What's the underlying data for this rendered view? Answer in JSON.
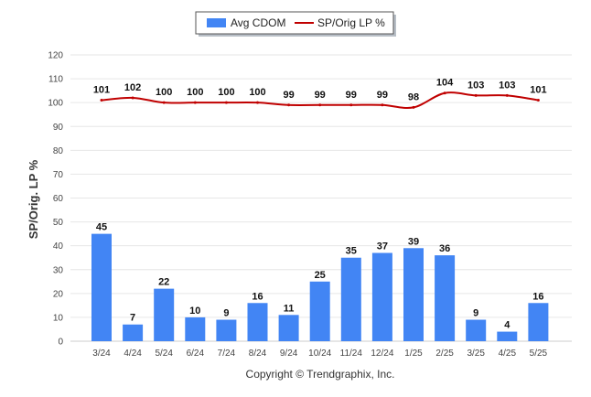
{
  "chart_data": {
    "type": "bar",
    "categories": [
      "3/24",
      "4/24",
      "5/24",
      "6/24",
      "7/24",
      "8/24",
      "9/24",
      "10/24",
      "11/24",
      "12/24",
      "1/25",
      "2/25",
      "3/25",
      "4/25",
      "5/25"
    ],
    "series": [
      {
        "name": "Avg CDOM",
        "type": "bar",
        "color": "#4285f4",
        "values": [
          45,
          7,
          22,
          10,
          9,
          16,
          11,
          25,
          35,
          37,
          39,
          36,
          9,
          4,
          16
        ]
      },
      {
        "name": "SP/Orig LP %",
        "type": "line",
        "color": "#c00000",
        "values": [
          101,
          102,
          100,
          100,
          100,
          100,
          99,
          99,
          99,
          99,
          98,
          104,
          103,
          103,
          101
        ]
      }
    ],
    "ylabel": "SP/Orig. LP %",
    "ylim": [
      0,
      120
    ],
    "yticks": [
      0,
      10,
      20,
      30,
      40,
      50,
      60,
      70,
      80,
      90,
      100,
      110,
      120
    ],
    "grid": true,
    "legend_position": "top-center"
  },
  "footer": {
    "copyright": "Copyright © Trendgraphix, Inc."
  }
}
